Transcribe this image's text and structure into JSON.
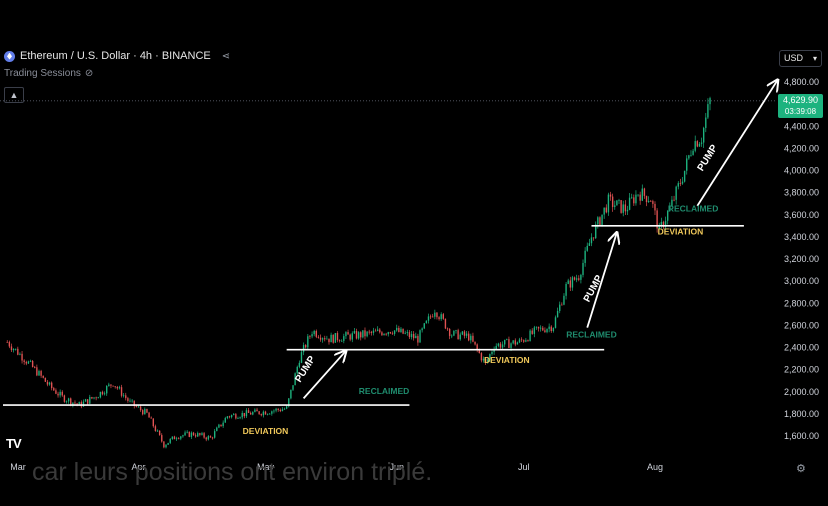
{
  "header": {
    "title": "Ethereum / U.S. Dollar · 4h · BINANCE",
    "sessions_label": "Trading Sessions",
    "currency": "USD"
  },
  "price_tag": {
    "price": "4,629.90",
    "countdown": "03:39:08"
  },
  "watermark": "TV",
  "overlay_caption": "car leurs positions ont environ triplé.",
  "colors": {
    "up": "#1db37f",
    "down": "#e05252",
    "text_green": "#1f8c6e",
    "text_yellow": "#f0c85a",
    "line": "#ffffff"
  },
  "chart_data": {
    "type": "candlestick",
    "x_ticks": [
      "Mar",
      "Apr",
      "May",
      "Jun",
      "Jul",
      "Aug"
    ],
    "y_ticks": [
      1600,
      1800,
      2000,
      2200,
      2400,
      2600,
      2800,
      3000,
      3200,
      3400,
      3600,
      3800,
      4000,
      4200,
      4400,
      4800
    ],
    "y_tick_labels": [
      "1,600.00",
      "1,800.00",
      "2,000.00",
      "2,200.00",
      "2,400.00",
      "2,600.00",
      "2,800.00",
      "3,000.00",
      "3,200.00",
      "3,400.00",
      "3,600.00",
      "3,800.00",
      "4,000.00",
      "4,200.00",
      "4,400.00",
      "4,800.00"
    ],
    "ylim": [
      1450,
      4900
    ],
    "last_price": 4629.9,
    "price_path": [
      [
        "2025-03-01",
        2450
      ],
      [
        "2025-03-05",
        2300
      ],
      [
        "2025-03-08",
        2180
      ],
      [
        "2025-03-11",
        2050
      ],
      [
        "2025-03-14",
        1950
      ],
      [
        "2025-03-18",
        1880
      ],
      [
        "2025-03-22",
        1960
      ],
      [
        "2025-03-26",
        2080
      ],
      [
        "2025-03-30",
        1900
      ],
      [
        "2025-04-03",
        1800
      ],
      [
        "2025-04-07",
        1520
      ],
      [
        "2025-04-10",
        1600
      ],
      [
        "2025-04-14",
        1620
      ],
      [
        "2025-04-18",
        1580
      ],
      [
        "2025-04-22",
        1780
      ],
      [
        "2025-04-26",
        1800
      ],
      [
        "2025-05-01",
        1820
      ],
      [
        "2025-05-06",
        1850
      ],
      [
        "2025-05-09",
        2300
      ],
      [
        "2025-05-12",
        2550
      ],
      [
        "2025-05-16",
        2480
      ],
      [
        "2025-05-20",
        2500
      ],
      [
        "2025-05-25",
        2520
      ],
      [
        "2025-05-31",
        2560
      ],
      [
        "2025-06-06",
        2480
      ],
      [
        "2025-06-10",
        2750
      ],
      [
        "2025-06-14",
        2520
      ],
      [
        "2025-06-18",
        2500
      ],
      [
        "2025-06-22",
        2250
      ],
      [
        "2025-06-24",
        2420
      ],
      [
        "2025-06-30",
        2450
      ],
      [
        "2025-07-04",
        2550
      ],
      [
        "2025-07-08",
        2600
      ],
      [
        "2025-07-11",
        2950
      ],
      [
        "2025-07-14",
        3050
      ],
      [
        "2025-07-17",
        3400
      ],
      [
        "2025-07-21",
        3720
      ],
      [
        "2025-07-25",
        3650
      ],
      [
        "2025-07-28",
        3800
      ],
      [
        "2025-07-31",
        3750
      ],
      [
        "2025-08-02",
        3450
      ],
      [
        "2025-08-05",
        3700
      ],
      [
        "2025-08-08",
        4000
      ],
      [
        "2025-08-10",
        4250
      ],
      [
        "2025-08-12",
        4300
      ],
      [
        "2025-08-14",
        4630
      ]
    ],
    "levels": [
      {
        "price": 1880,
        "from": "2025-02-28",
        "to": "2025-06-04"
      },
      {
        "price": 2380,
        "from": "2025-05-06",
        "to": "2025-07-20"
      },
      {
        "price": 3500,
        "from": "2025-07-17",
        "to": "2025-08-22"
      }
    ],
    "annotations": [
      {
        "text": "DEVIATION",
        "date": "2025-05-01",
        "price": 1620,
        "color": "yellow"
      },
      {
        "text": "RECLAIMED",
        "date": "2025-05-29",
        "price": 1980,
        "color": "green"
      },
      {
        "text": "PUMP",
        "date": "2025-05-11",
        "price": 2190,
        "color": "white",
        "angle": -58
      },
      {
        "text": "DEVIATION",
        "date": "2025-06-27",
        "price": 2260,
        "color": "yellow"
      },
      {
        "text": "RECLAIMED",
        "date": "2025-07-17",
        "price": 2490,
        "color": "green"
      },
      {
        "text": "PUMP",
        "date": "2025-07-18",
        "price": 2920,
        "color": "white",
        "angle": -62
      },
      {
        "text": "DEVIATION",
        "date": "2025-08-07",
        "price": 3420,
        "color": "yellow"
      },
      {
        "text": "RECLAIMED",
        "date": "2025-08-10",
        "price": 3630,
        "color": "green"
      },
      {
        "text": "PUMP",
        "date": "2025-08-14",
        "price": 4100,
        "color": "white",
        "angle": -58
      }
    ],
    "arrows": [
      {
        "from": [
          "2025-05-10",
          1940
        ],
        "to": [
          "2025-05-20",
          2370
        ]
      },
      {
        "from": [
          "2025-07-16",
          2580
        ],
        "to": [
          "2025-07-23",
          3440
        ]
      },
      {
        "from": [
          "2025-08-11",
          3680
        ],
        "to": [
          "2025-08-30",
          4820
        ]
      }
    ]
  }
}
